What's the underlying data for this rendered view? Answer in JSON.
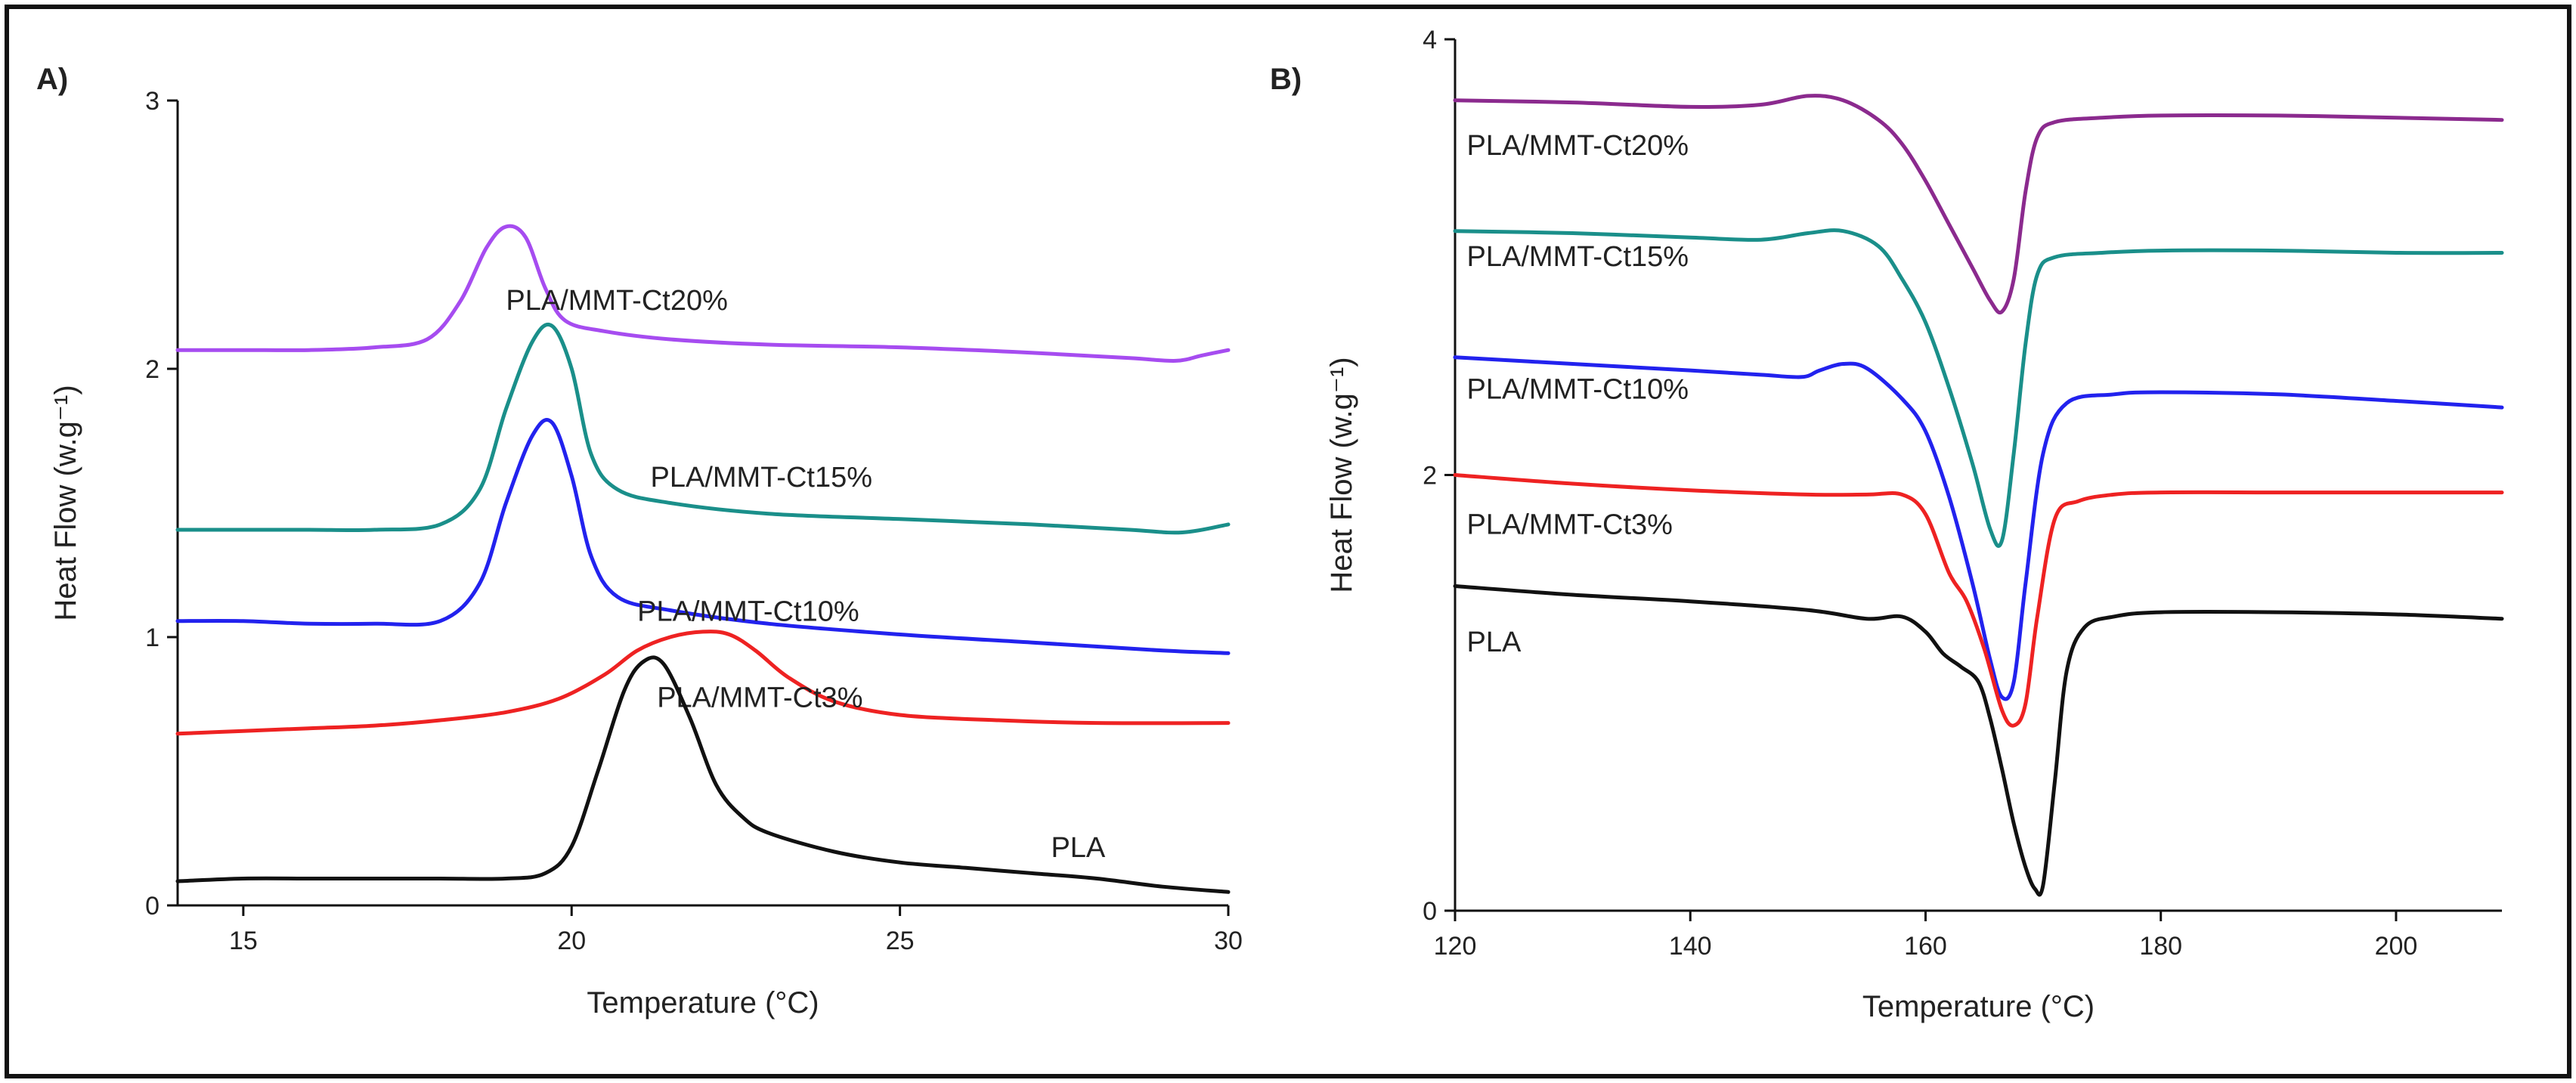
{
  "chart_data": [
    {
      "panel_label": "A)",
      "type": "line",
      "xlabel": "Temperature (°C)",
      "ylabel": "Heat Flow (w.g⁻¹)",
      "xlim": [
        14,
        30
      ],
      "ylim": [
        0,
        3
      ],
      "xticks": [
        15,
        20,
        25,
        30
      ],
      "yticks": [
        0,
        1,
        2,
        3
      ],
      "series": [
        {
          "name": "PLA/MMT-Ct20%",
          "label": "PLA/MMT-Ct20%",
          "color": "#a64cf0",
          "label_at": {
            "x": 19.0,
            "y": 2.22
          },
          "x": [
            14.0,
            15.0,
            16.0,
            17.0,
            17.8,
            18.3,
            18.7,
            19.0,
            19.3,
            19.6,
            19.9,
            20.5,
            21.5,
            23.0,
            25.0,
            27.0,
            28.5,
            29.2,
            29.6,
            30.0
          ],
          "y": [
            2.07,
            2.07,
            2.07,
            2.08,
            2.11,
            2.25,
            2.45,
            2.53,
            2.49,
            2.3,
            2.18,
            2.14,
            2.11,
            2.09,
            2.08,
            2.06,
            2.04,
            2.03,
            2.05,
            2.07
          ]
        },
        {
          "name": "PLA/MMT-Ct15%",
          "label": "PLA/MMT-Ct15%",
          "color": "#1a8f8a",
          "label_at": {
            "x": 21.2,
            "y": 1.56
          },
          "x": [
            14.0,
            15.0,
            16.0,
            17.0,
            18.0,
            18.6,
            19.0,
            19.4,
            19.7,
            20.0,
            20.3,
            20.7,
            21.5,
            23.0,
            25.0,
            27.0,
            28.5,
            29.3,
            30.0
          ],
          "y": [
            1.4,
            1.4,
            1.4,
            1.4,
            1.42,
            1.55,
            1.85,
            2.1,
            2.16,
            2.0,
            1.68,
            1.55,
            1.5,
            1.46,
            1.44,
            1.42,
            1.4,
            1.39,
            1.42
          ]
        },
        {
          "name": "PLA/MMT-Ct10%",
          "label": "PLA/MMT-Ct10%",
          "color": "#2222ee",
          "label_at": {
            "x": 21.0,
            "y": 1.06
          },
          "x": [
            14.0,
            15.0,
            16.0,
            17.0,
            18.0,
            18.6,
            19.0,
            19.4,
            19.7,
            20.0,
            20.3,
            20.7,
            21.5,
            23.0,
            25.0,
            27.0,
            29.0,
            30.0
          ],
          "y": [
            1.06,
            1.06,
            1.05,
            1.05,
            1.06,
            1.2,
            1.5,
            1.75,
            1.8,
            1.6,
            1.3,
            1.15,
            1.1,
            1.05,
            1.01,
            0.98,
            0.95,
            0.94
          ]
        },
        {
          "name": "PLA/MMT-Ct3%",
          "label": "PLA/MMT-Ct3%",
          "color": "#ee2222",
          "label_at": {
            "x": 21.3,
            "y": 0.74
          },
          "x": [
            14.0,
            15.0,
            16.0,
            17.0,
            18.0,
            19.0,
            19.8,
            20.5,
            21.0,
            21.5,
            22.0,
            22.4,
            22.8,
            23.3,
            24.0,
            25.0,
            26.5,
            28.0,
            30.0
          ],
          "y": [
            0.64,
            0.65,
            0.66,
            0.67,
            0.69,
            0.72,
            0.77,
            0.86,
            0.95,
            1.0,
            1.02,
            1.01,
            0.95,
            0.85,
            0.76,
            0.71,
            0.69,
            0.68,
            0.68
          ]
        },
        {
          "name": "PLA",
          "label": "PLA",
          "color": "#111111",
          "label_at": {
            "x": 27.3,
            "y": 0.18
          },
          "x": [
            14.0,
            15.0,
            16.0,
            17.0,
            18.0,
            19.0,
            19.6,
            20.0,
            20.4,
            20.8,
            21.1,
            21.4,
            21.8,
            22.2,
            22.6,
            23.0,
            24.0,
            25.0,
            26.0,
            27.0,
            28.0,
            29.0,
            30.0
          ],
          "y": [
            0.09,
            0.1,
            0.1,
            0.1,
            0.1,
            0.1,
            0.12,
            0.22,
            0.5,
            0.8,
            0.91,
            0.9,
            0.7,
            0.45,
            0.33,
            0.27,
            0.2,
            0.16,
            0.14,
            0.12,
            0.1,
            0.07,
            0.05
          ]
        }
      ]
    },
    {
      "panel_label": "B)",
      "type": "line",
      "xlabel": "Temperature (°C)",
      "ylabel": "Heat Flow (w.g⁻¹)",
      "xlim": [
        120,
        209
      ],
      "ylim": [
        0,
        4
      ],
      "xticks": [
        120,
        140,
        160,
        180,
        200
      ],
      "yticks": [
        0,
        2,
        4
      ],
      "series": [
        {
          "name": "PLA/MMT-Ct20%",
          "label": "PLA/MMT-Ct20%",
          "color": "#8b2a8e",
          "label_at": {
            "x": 121,
            "y": 3.47
          },
          "x": [
            120,
            130,
            140,
            146,
            150,
            153,
            156,
            158,
            160,
            162,
            164,
            165.5,
            166.5,
            167.5,
            168.5,
            169.5,
            171,
            175,
            180,
            190,
            200,
            209
          ],
          "y": [
            3.72,
            3.71,
            3.69,
            3.7,
            3.74,
            3.72,
            3.63,
            3.52,
            3.35,
            3.15,
            2.95,
            2.8,
            2.75,
            2.9,
            3.3,
            3.55,
            3.62,
            3.64,
            3.65,
            3.65,
            3.64,
            3.63
          ]
        },
        {
          "name": "PLA/MMT-Ct15%",
          "label": "PLA/MMT-Ct15%",
          "color": "#1a8f8a",
          "label_at": {
            "x": 121,
            "y": 2.96
          },
          "x": [
            120,
            130,
            140,
            146,
            150,
            153,
            156,
            158,
            160,
            162,
            164,
            165.5,
            166.5,
            167.5,
            168.5,
            169.5,
            171,
            175,
            180,
            190,
            200,
            209
          ],
          "y": [
            3.12,
            3.11,
            3.09,
            3.08,
            3.11,
            3.12,
            3.05,
            2.9,
            2.7,
            2.4,
            2.05,
            1.75,
            1.7,
            2.1,
            2.6,
            2.92,
            3.0,
            3.02,
            3.03,
            3.03,
            3.02,
            3.02
          ]
        },
        {
          "name": "PLA/MMT-Ct10%",
          "label": "PLA/MMT-Ct10%",
          "color": "#2222ee",
          "label_at": {
            "x": 121,
            "y": 2.35
          },
          "x": [
            120,
            130,
            140,
            146,
            149.5,
            151,
            153,
            155,
            158,
            160,
            162,
            164,
            165.5,
            166.5,
            167.5,
            168.5,
            170,
            172,
            176,
            180,
            190,
            200,
            209
          ],
          "y": [
            2.54,
            2.51,
            2.48,
            2.46,
            2.45,
            2.48,
            2.51,
            2.49,
            2.35,
            2.2,
            1.9,
            1.5,
            1.15,
            0.98,
            1.05,
            1.5,
            2.1,
            2.33,
            2.37,
            2.38,
            2.37,
            2.34,
            2.31
          ]
        },
        {
          "name": "PLA/MMT-Ct3%",
          "label": "PLA/MMT-Ct3%",
          "color": "#ee2222",
          "label_at": {
            "x": 121,
            "y": 1.73
          },
          "x": [
            120,
            130,
            140,
            150,
            155,
            158,
            160,
            162,
            163.5,
            165,
            166.5,
            167.5,
            168.5,
            169.5,
            171,
            173,
            176,
            180,
            190,
            200,
            209
          ],
          "y": [
            2.0,
            1.96,
            1.93,
            1.91,
            1.91,
            1.91,
            1.82,
            1.55,
            1.42,
            1.2,
            0.92,
            0.85,
            0.95,
            1.35,
            1.8,
            1.88,
            1.91,
            1.92,
            1.92,
            1.92,
            1.92
          ]
        },
        {
          "name": "PLA",
          "label": "PLA",
          "color": "#111111",
          "label_at": {
            "x": 121,
            "y": 1.19
          },
          "x": [
            120,
            130,
            140,
            150,
            155,
            158,
            160,
            161.5,
            163,
            164.5,
            165.5,
            166.5,
            167.5,
            168.5,
            169.3,
            170,
            171,
            172,
            173.5,
            176,
            180,
            190,
            200,
            209
          ],
          "y": [
            1.49,
            1.45,
            1.42,
            1.38,
            1.34,
            1.35,
            1.28,
            1.18,
            1.12,
            1.05,
            0.88,
            0.65,
            0.4,
            0.2,
            0.1,
            0.12,
            0.6,
            1.1,
            1.3,
            1.35,
            1.37,
            1.37,
            1.36,
            1.34
          ]
        }
      ]
    }
  ]
}
